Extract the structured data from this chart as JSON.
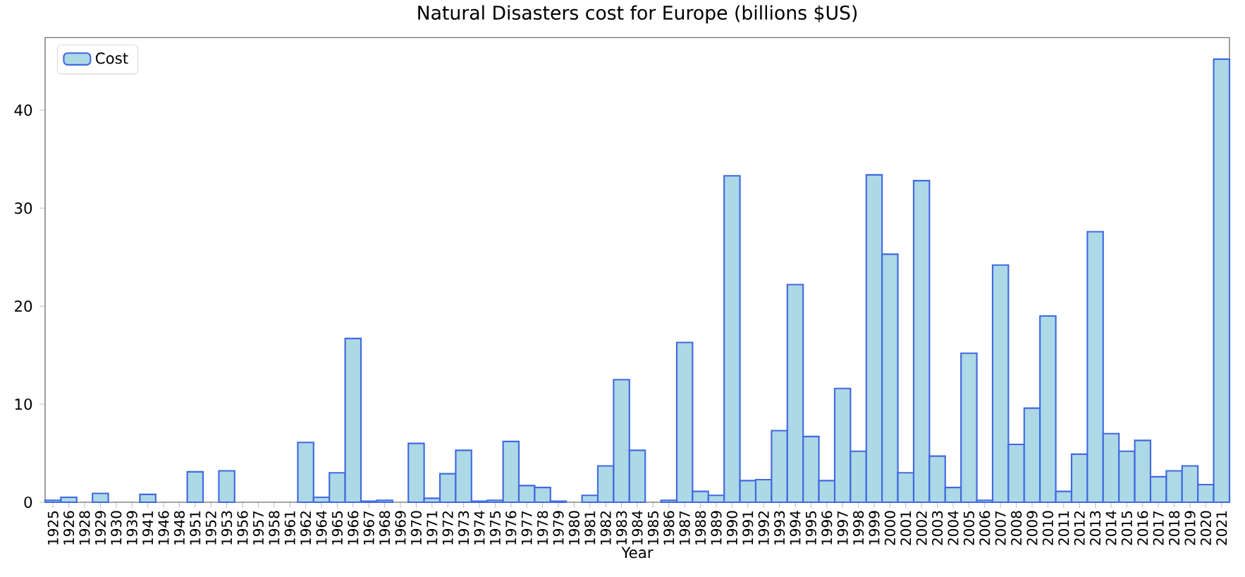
{
  "chart_data": {
    "type": "bar",
    "title": "Natural Disasters cost for Europe (billions $US)",
    "xlabel": "Year",
    "categories": [
      "1925",
      "1926",
      "1928",
      "1929",
      "1930",
      "1939",
      "1941",
      "1946",
      "1948",
      "1951",
      "1952",
      "1953",
      "1956",
      "1957",
      "1958",
      "1961",
      "1962",
      "1964",
      "1965",
      "1966",
      "1967",
      "1968",
      "1969",
      "1970",
      "1971",
      "1972",
      "1973",
      "1974",
      "1975",
      "1976",
      "1977",
      "1978",
      "1979",
      "1980",
      "1981",
      "1982",
      "1983",
      "1984",
      "1985",
      "1986",
      "1987",
      "1988",
      "1989",
      "1990",
      "1991",
      "1992",
      "1993",
      "1994",
      "1995",
      "1996",
      "1997",
      "1998",
      "1999",
      "2000",
      "2001",
      "2002",
      "2003",
      "2004",
      "2005",
      "2006",
      "2007",
      "2008",
      "2009",
      "2010",
      "2011",
      "2012",
      "2013",
      "2014",
      "2015",
      "2016",
      "2017",
      "2018",
      "2019",
      "2020",
      "2021"
    ],
    "series": [
      {
        "name": "Cost",
        "color": "#add8e6",
        "values": [
          0.2,
          0.5,
          0,
          0.9,
          0,
          0,
          0.8,
          0,
          0,
          3.1,
          0,
          3.2,
          0,
          0,
          0,
          0,
          6.1,
          0.5,
          3.0,
          16.7,
          0.1,
          0.2,
          0,
          6.0,
          0.4,
          2.9,
          5.3,
          0.1,
          0.2,
          6.2,
          1.7,
          1.5,
          0.1,
          0,
          0.7,
          3.7,
          12.5,
          5.3,
          0,
          0.2,
          16.3,
          1.1,
          0.7,
          33.3,
          2.2,
          2.3,
          7.3,
          22.2,
          6.7,
          2.2,
          11.6,
          5.2,
          33.4,
          25.3,
          3.0,
          32.8,
          4.7,
          1.5,
          15.2,
          0.2,
          24.2,
          5.9,
          9.6,
          19.0,
          1.1,
          4.9,
          27.6,
          7.0,
          5.2,
          6.3,
          2.6,
          3.2,
          3.7,
          1.8,
          45.2
        ]
      }
    ],
    "ylim": [
      0,
      47.4
    ],
    "yticks": [
      0,
      10,
      20,
      30,
      40
    ],
    "legend": "top left",
    "grid": false
  }
}
